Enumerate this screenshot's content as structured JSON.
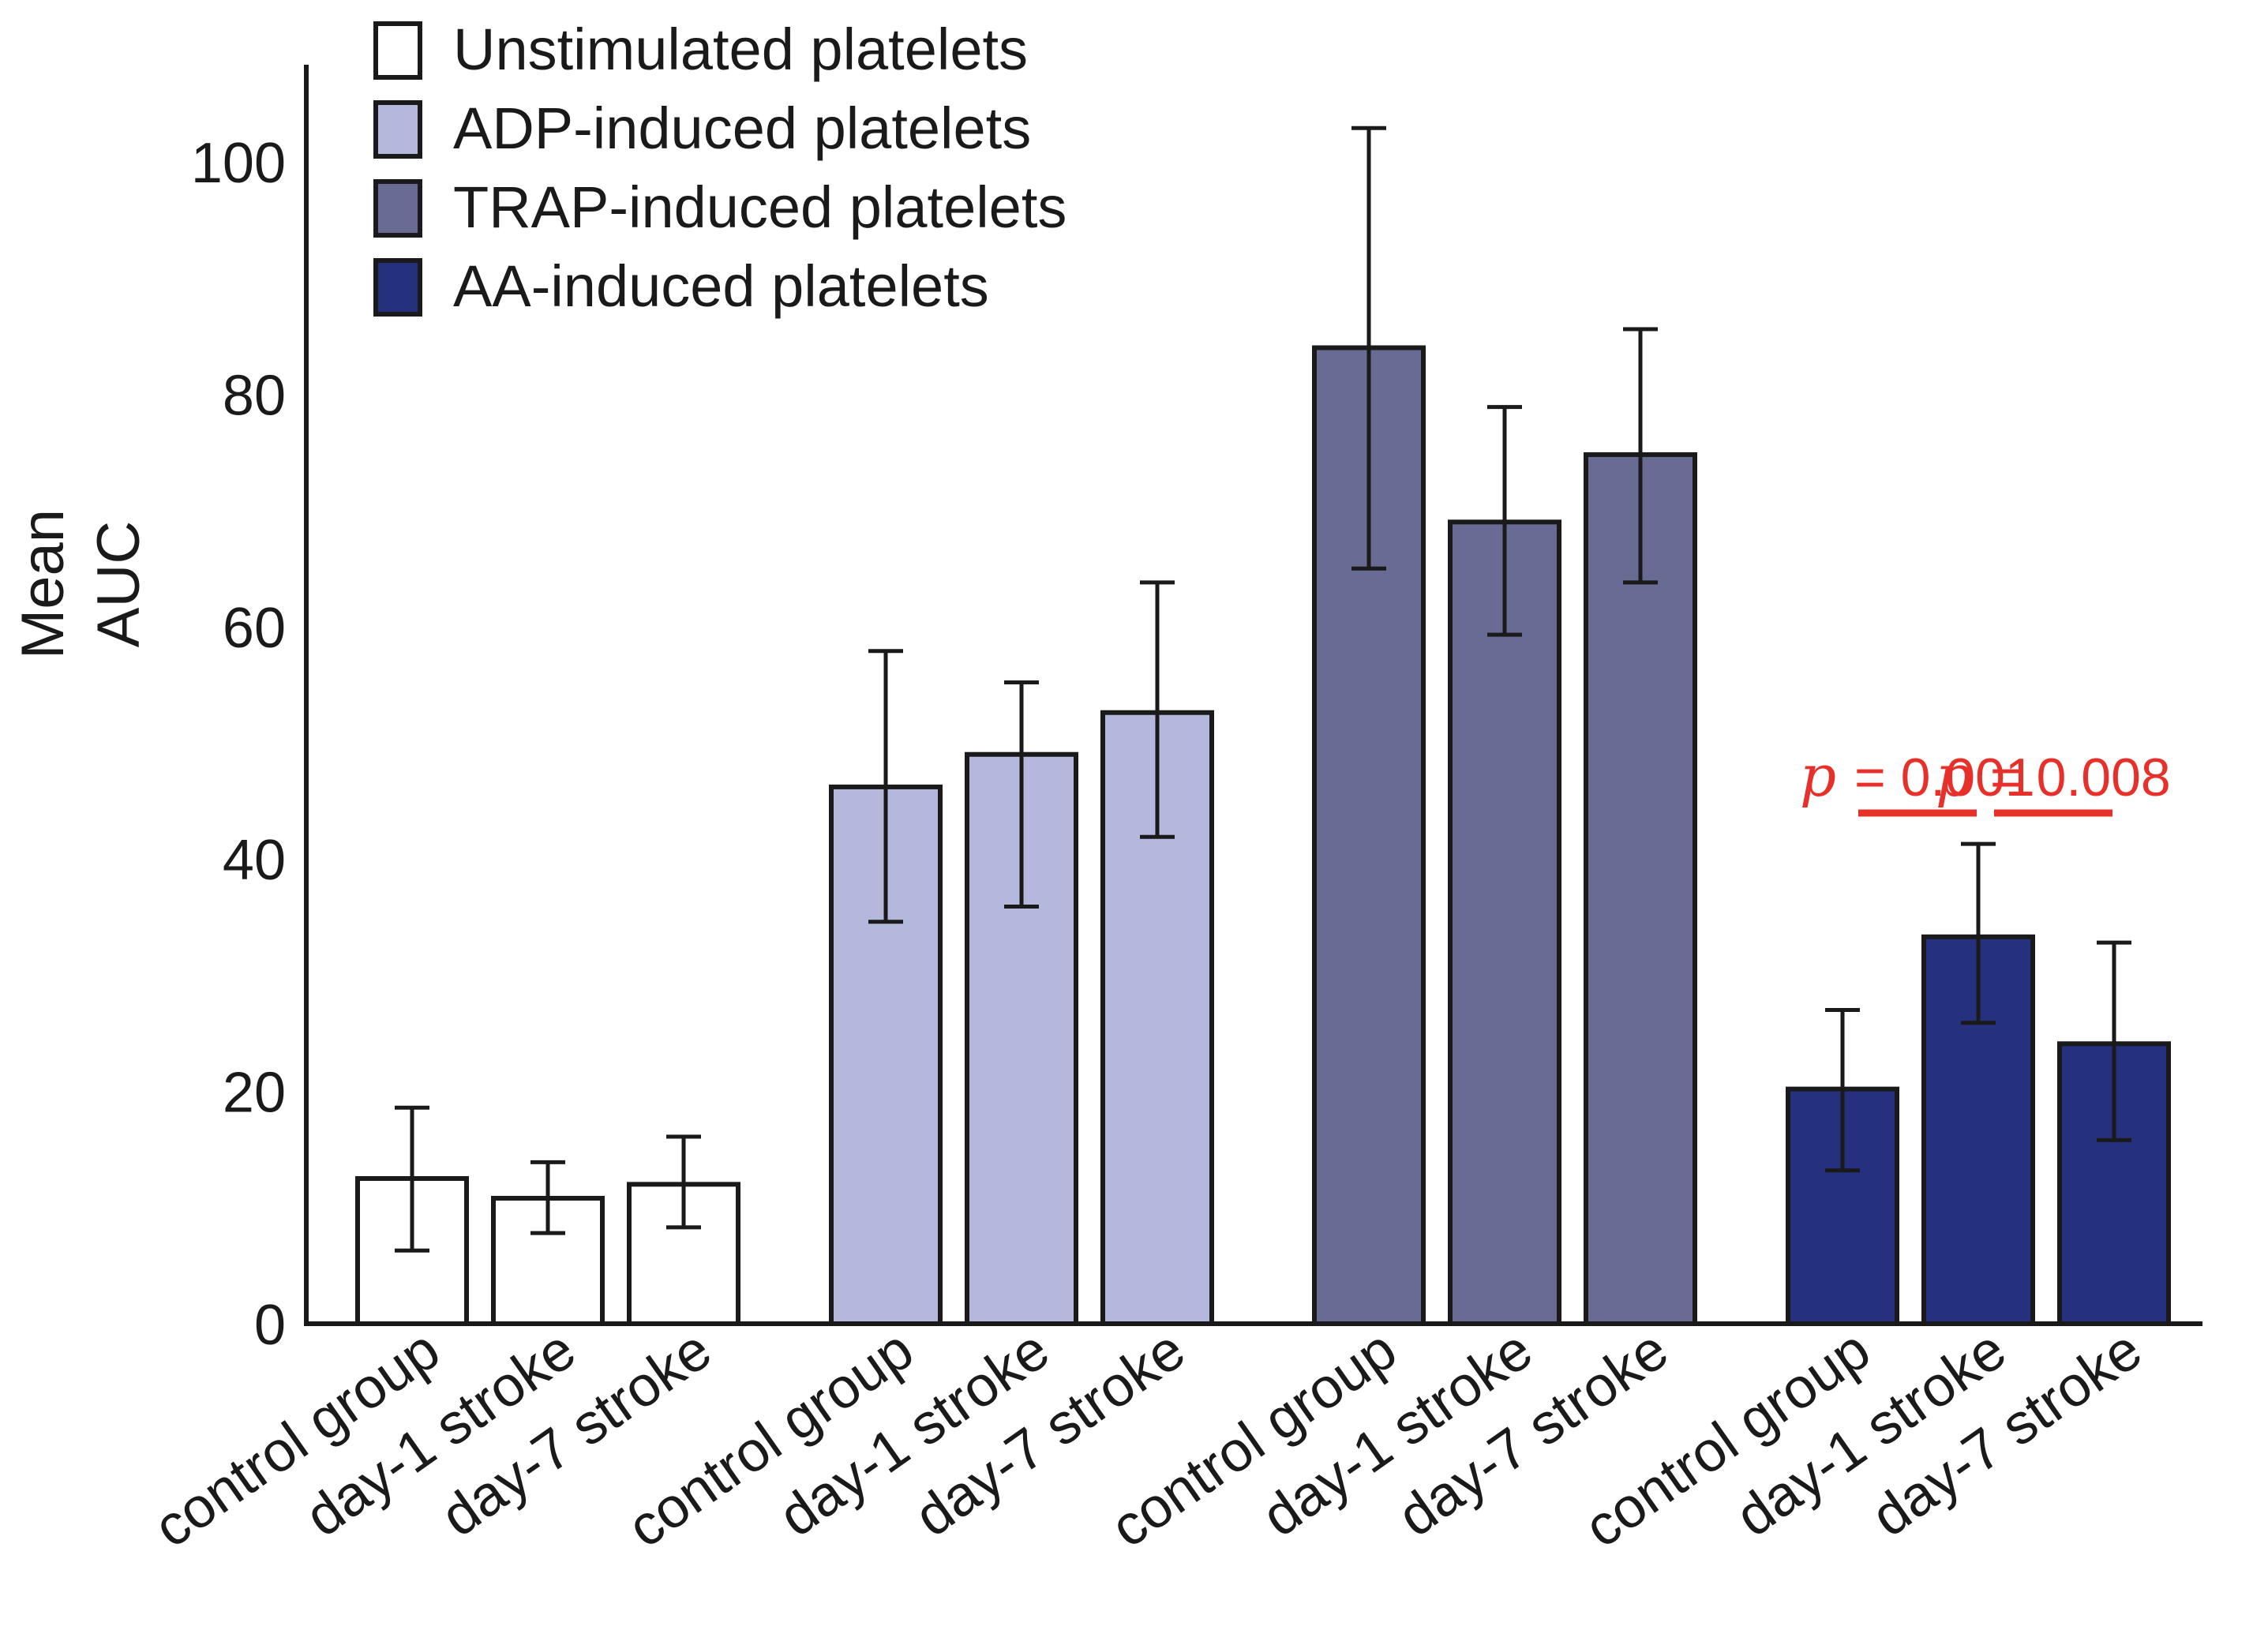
{
  "chart_data": {
    "type": "bar",
    "title": "",
    "xlabel": "",
    "ylabel": "Mean AUC",
    "ylabel_lines": [
      "Mean",
      "AUC"
    ],
    "ylim": [
      0,
      108
    ],
    "yticks": [
      "0",
      "20",
      "40",
      "60",
      "80",
      "100"
    ],
    "categories": [
      "control group",
      "day-1 stroke",
      "day-7 stroke"
    ],
    "series": [
      {
        "name": "Unstimulated platelets",
        "color": "#ffffff",
        "values": [
          12.5,
          10.8,
          12.0
        ],
        "err_low": [
          6.3,
          7.8,
          8.3
        ],
        "err_high": [
          18.6,
          13.9,
          16.1
        ]
      },
      {
        "name": "ADP-induced platelets",
        "color": "#b5b8dd",
        "values": [
          46.2,
          49.0,
          52.6
        ],
        "err_low": [
          34.6,
          35.9,
          41.9
        ],
        "err_high": [
          57.9,
          55.2,
          63.8
        ]
      },
      {
        "name": "TRAP-induced platelets",
        "color": "#686b93",
        "values": [
          84.0,
          69.0,
          74.8
        ],
        "err_low": [
          65.0,
          59.3,
          63.8
        ],
        "err_high": [
          102.9,
          78.9,
          85.6
        ]
      },
      {
        "name": "AA-induced platelets",
        "color": "#25307f",
        "values": [
          20.2,
          33.3,
          24.1
        ],
        "err_low": [
          13.2,
          25.9,
          15.8
        ],
        "err_high": [
          27.0,
          41.3,
          32.8
        ]
      }
    ],
    "annotations": [
      {
        "series": "AA-induced platelets",
        "from": "control group",
        "to": "day-1 stroke",
        "symbol": "p",
        "text": "= 0.001",
        "color": "#e8302a"
      },
      {
        "series": "AA-induced platelets",
        "from": "day-1 stroke",
        "to": "day-7 stroke",
        "symbol": "p",
        "text": "= 0.008",
        "color": "#e8302a"
      }
    ],
    "legend_position": "top-left"
  }
}
